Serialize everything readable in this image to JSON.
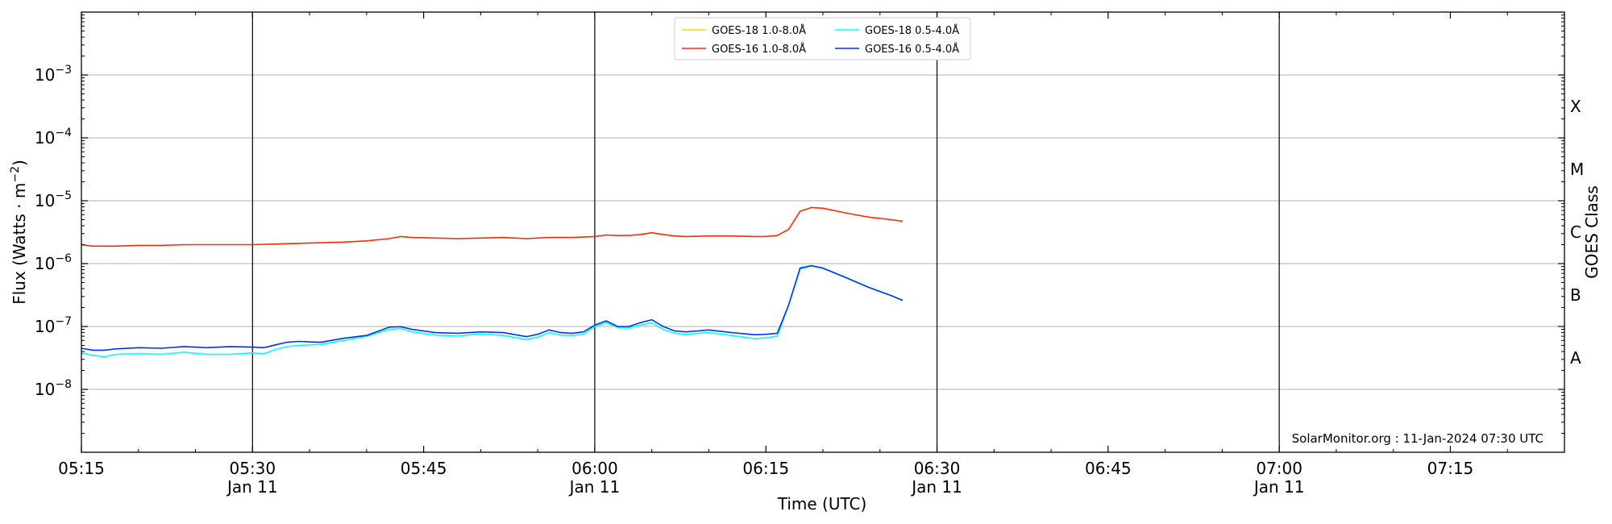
{
  "chart_data": {
    "type": "line",
    "xlabel": "Time (UTC)",
    "ylabel": "Flux (Watts · m",
    "ylabel_sup": "−2",
    "ylabel_close": ")",
    "right_label": "GOES Class",
    "credit": "SolarMonitor.org : 11-Jan-2024 07:30 UTC",
    "y_scale": "log",
    "ylim": [
      1e-09,
      0.01
    ],
    "xlim": [
      "05:15",
      "07:25"
    ],
    "grid": "horizontal",
    "legend_position": "top-center",
    "y_ticks": [
      {
        "value": 1e-08,
        "base": "10",
        "exp": "−8"
      },
      {
        "value": 1e-07,
        "base": "10",
        "exp": "−7"
      },
      {
        "value": 1e-06,
        "base": "10",
        "exp": "−6"
      },
      {
        "value": 1e-05,
        "base": "10",
        "exp": "−5"
      },
      {
        "value": 0.0001,
        "base": "10",
        "exp": "−4"
      },
      {
        "value": 0.001,
        "base": "10",
        "exp": "−3"
      }
    ],
    "x_ticks": [
      {
        "time": "05:15",
        "label": "05:15",
        "date": ""
      },
      {
        "time": "05:30",
        "label": "05:30",
        "date": "Jan 11"
      },
      {
        "time": "05:45",
        "label": "05:45",
        "date": ""
      },
      {
        "time": "06:00",
        "label": "06:00",
        "date": "Jan 11"
      },
      {
        "time": "06:15",
        "label": "06:15",
        "date": ""
      },
      {
        "time": "06:30",
        "label": "06:30",
        "date": "Jan 11"
      },
      {
        "time": "06:45",
        "label": "06:45",
        "date": ""
      },
      {
        "time": "07:00",
        "label": "07:00",
        "date": "Jan 11"
      },
      {
        "time": "07:15",
        "label": "07:15",
        "date": ""
      }
    ],
    "vlines": [
      "05:30",
      "06:00",
      "06:30",
      "07:00"
    ],
    "goes_classes": [
      {
        "label": "A",
        "value": 3.16e-08
      },
      {
        "label": "B",
        "value": 3.16e-07
      },
      {
        "label": "C",
        "value": 3.16e-06
      },
      {
        "label": "M",
        "value": 3.16e-05
      },
      {
        "label": "X",
        "value": 0.000316
      }
    ],
    "series": [
      {
        "name": "GOES-18 1.0-8.0Å",
        "color": "#ffd700",
        "x": [],
        "values": []
      },
      {
        "name": "GOES-18 0.5-4.0Å",
        "color": "#00ffff",
        "x": [
          "05:15",
          "05:16",
          "05:17",
          "05:18",
          "05:20",
          "05:22",
          "05:24",
          "05:26",
          "05:28",
          "05:30",
          "05:31",
          "05:32",
          "05:33",
          "05:34",
          "05:36",
          "05:38",
          "05:40",
          "05:42",
          "05:43",
          "05:44",
          "05:46",
          "05:48",
          "05:50",
          "05:52",
          "05:54",
          "05:55",
          "05:56",
          "05:57",
          "05:58",
          "05:59",
          "06:00",
          "06:01",
          "06:02",
          "06:03",
          "06:04",
          "06:05",
          "06:06",
          "06:07",
          "06:08",
          "06:09",
          "06:10",
          "06:12",
          "06:14",
          "06:15",
          "06:16",
          "06:17",
          "06:18",
          "06:19",
          "06:20",
          "06:22",
          "06:24",
          "06:26",
          "06:27"
        ],
        "values": [
          3.8e-08,
          3.5e-08,
          3.3e-08,
          3.6e-08,
          3.7e-08,
          3.6e-08,
          3.9e-08,
          3.6e-08,
          3.6e-08,
          3.8e-08,
          3.7e-08,
          4.3e-08,
          4.8e-08,
          5e-08,
          5.2e-08,
          6e-08,
          7e-08,
          9e-08,
          9.3e-08,
          8.2e-08,
          7.3e-08,
          7.1e-08,
          7.6e-08,
          7.2e-08,
          6.2e-08,
          6.8e-08,
          8e-08,
          7.3e-08,
          7.2e-08,
          7.5e-08,
          1e-07,
          1.15e-07,
          9.7e-08,
          9.5e-08,
          1.05e-07,
          1.15e-07,
          9e-08,
          7.8e-08,
          7.5e-08,
          7.8e-08,
          8e-08,
          7.2e-08,
          6.4e-08,
          6.6e-08,
          7e-08,
          2.2e-07,
          8.2e-07,
          9.2e-07,
          8.4e-07,
          6e-07,
          4.2e-07,
          3.1e-07,
          2.6e-07
        ]
      },
      {
        "name": "GOES-16 1.0-8.0Å",
        "color": "#ff2a00",
        "x": [
          "05:15",
          "05:16",
          "05:18",
          "05:20",
          "05:22",
          "05:24",
          "05:26",
          "05:28",
          "05:30",
          "05:32",
          "05:34",
          "05:36",
          "05:38",
          "05:40",
          "05:42",
          "05:43",
          "05:44",
          "05:46",
          "05:48",
          "05:50",
          "05:52",
          "05:54",
          "05:56",
          "05:58",
          "06:00",
          "06:01",
          "06:02",
          "06:03",
          "06:04",
          "06:05",
          "06:06",
          "06:07",
          "06:08",
          "06:10",
          "06:12",
          "06:14",
          "06:15",
          "06:16",
          "06:17",
          "06:18",
          "06:19",
          "06:20",
          "06:22",
          "06:24",
          "06:26",
          "06:27"
        ],
        "values": [
          2e-06,
          1.9e-06,
          1.9e-06,
          1.95e-06,
          1.95e-06,
          2e-06,
          2e-06,
          2e-06,
          2e-06,
          2.05e-06,
          2.1e-06,
          2.15e-06,
          2.2e-06,
          2.3e-06,
          2.5e-06,
          2.7e-06,
          2.6e-06,
          2.55e-06,
          2.5e-06,
          2.55e-06,
          2.6e-06,
          2.5e-06,
          2.6e-06,
          2.6e-06,
          2.7e-06,
          2.85e-06,
          2.8e-06,
          2.8e-06,
          2.9e-06,
          3.1e-06,
          2.9e-06,
          2.75e-06,
          2.7e-06,
          2.75e-06,
          2.75e-06,
          2.7e-06,
          2.7e-06,
          2.8e-06,
          3.5e-06,
          6.8e-06,
          7.8e-06,
          7.6e-06,
          6.4e-06,
          5.5e-06,
          5e-06,
          4.7e-06
        ]
      },
      {
        "name": "GOES-16 0.5-4.0Å",
        "color": "#0033ee",
        "x": [
          "05:15",
          "05:16",
          "05:17",
          "05:18",
          "05:20",
          "05:22",
          "05:24",
          "05:26",
          "05:28",
          "05:30",
          "05:31",
          "05:32",
          "05:33",
          "05:34",
          "05:36",
          "05:38",
          "05:40",
          "05:42",
          "05:43",
          "05:44",
          "05:46",
          "05:48",
          "05:50",
          "05:52",
          "05:54",
          "05:55",
          "05:56",
          "05:57",
          "05:58",
          "05:59",
          "06:00",
          "06:01",
          "06:02",
          "06:03",
          "06:04",
          "06:05",
          "06:06",
          "06:07",
          "06:08",
          "06:09",
          "06:10",
          "06:12",
          "06:14",
          "06:15",
          "06:16",
          "06:17",
          "06:18",
          "06:19",
          "06:20",
          "06:22",
          "06:24",
          "06:26",
          "06:27"
        ],
        "values": [
          4.5e-08,
          4.2e-08,
          4.2e-08,
          4.4e-08,
          4.6e-08,
          4.5e-08,
          4.8e-08,
          4.6e-08,
          4.8e-08,
          4.7e-08,
          4.6e-08,
          5.1e-08,
          5.6e-08,
          5.8e-08,
          5.6e-08,
          6.5e-08,
          7.2e-08,
          9.8e-08,
          9.9e-08,
          9e-08,
          8e-08,
          7.8e-08,
          8.2e-08,
          8e-08,
          6.9e-08,
          7.5e-08,
          8.8e-08,
          8e-08,
          7.8e-08,
          8.2e-08,
          1.05e-07,
          1.23e-07,
          1e-07,
          1e-07,
          1.15e-07,
          1.28e-07,
          1e-07,
          8.5e-08,
          8.2e-08,
          8.5e-08,
          8.8e-08,
          8e-08,
          7.4e-08,
          7.5e-08,
          7.8e-08,
          2.2e-07,
          8.5e-07,
          9.3e-07,
          8.5e-07,
          6e-07,
          4.2e-07,
          3.1e-07,
          2.6e-07
        ]
      }
    ]
  }
}
